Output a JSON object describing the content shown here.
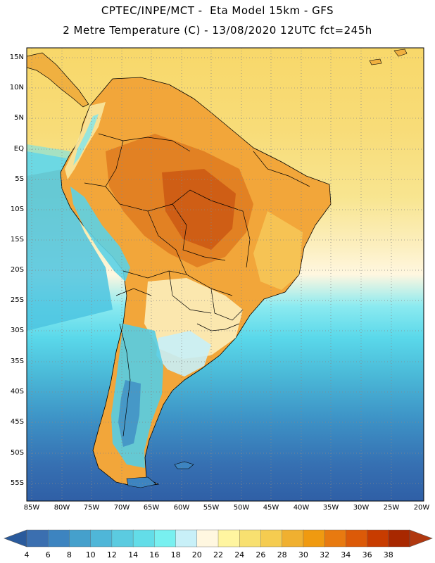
{
  "header": {
    "title_line1": "CPTEC/INPE/MCT -  Eta Model 15km - GFS",
    "title_line2": "2 Metre Temperature (C) - 13/08/2020 12UTC fct=245h"
  },
  "map": {
    "lat_labels": [
      "15N",
      "10N",
      "5N",
      "EQ",
      "5S",
      "10S",
      "15S",
      "20S",
      "25S",
      "30S",
      "35S",
      "40S",
      "45S",
      "50S",
      "55S"
    ],
    "lon_labels": [
      "85W",
      "80W",
      "75W",
      "70W",
      "65W",
      "60W",
      "55W",
      "50W",
      "45W",
      "40W",
      "35W",
      "30W",
      "25W",
      "20W"
    ]
  },
  "colorbar": {
    "labels": [
      "4",
      "6",
      "8",
      "10",
      "12",
      "14",
      "16",
      "18",
      "20",
      "22",
      "24",
      "26",
      "28",
      "30",
      "32",
      "34",
      "36",
      "38"
    ],
    "colors": [
      "#3b6fb0",
      "#3d84c0",
      "#45a0cc",
      "#4fb6d8",
      "#5bcbe0",
      "#63dde8",
      "#78f0f0",
      "#c8f0f8",
      "#fff7e0",
      "#fff5a0",
      "#f8e070",
      "#f5cc50",
      "#f0b030",
      "#f09a10",
      "#e87a10",
      "#dc5a08",
      "#c83c00",
      "#a82800"
    ],
    "low_color": "#2a5a9c",
    "high_color": "#b03810"
  }
}
